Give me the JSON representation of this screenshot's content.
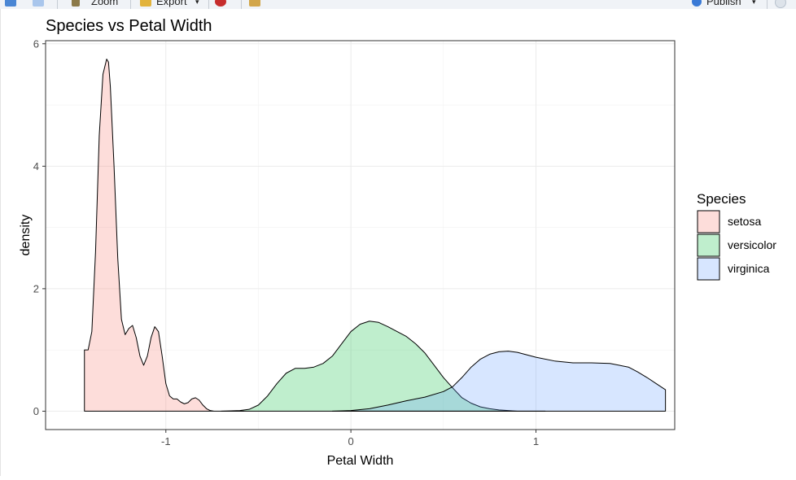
{
  "toolbar": {
    "zoom_label": "Zoom",
    "export_label": "Export",
    "publish_label": "Publish",
    "icons": [
      "back-icon",
      "forward-icon",
      "zoom-icon",
      "export-icon",
      "clear-icon",
      "broom-icon",
      "publish-icon",
      "refresh-icon"
    ]
  },
  "chart_data": {
    "type": "area",
    "title": "Species vs Petal Width",
    "xlabel": "Petal Width",
    "ylabel": "density",
    "xlim": [
      -1.65,
      1.75
    ],
    "ylim": [
      -0.3,
      6.05
    ],
    "xticks": [
      -1,
      0,
      1
    ],
    "xtick_labels": [
      "-1",
      "0",
      "1"
    ],
    "yticks": [
      0,
      2,
      4,
      6
    ],
    "ytick_labels": [
      "0",
      "2",
      "4",
      "6"
    ],
    "grid": true,
    "legend": {
      "title": "Species",
      "position": "right"
    },
    "series": [
      {
        "name": "setosa",
        "color": "#F8766D",
        "x": [
          -1.44,
          -1.42,
          -1.4,
          -1.38,
          -1.36,
          -1.34,
          -1.32,
          -1.31,
          -1.3,
          -1.28,
          -1.26,
          -1.24,
          -1.22,
          -1.2,
          -1.18,
          -1.16,
          -1.14,
          -1.12,
          -1.1,
          -1.08,
          -1.06,
          -1.04,
          -1.02,
          -1.0,
          -0.98,
          -0.96,
          -0.94,
          -0.92,
          -0.9,
          -0.88,
          -0.86,
          -0.84,
          -0.82,
          -0.8,
          -0.78,
          -0.76,
          -0.74,
          -0.72,
          -0.7,
          -0.68,
          -0.66,
          -0.62,
          -0.58
        ],
        "y": [
          1.0,
          1.0,
          1.3,
          2.6,
          4.5,
          5.5,
          5.75,
          5.7,
          5.3,
          4.0,
          2.5,
          1.5,
          1.25,
          1.35,
          1.4,
          1.2,
          0.9,
          0.75,
          0.9,
          1.2,
          1.38,
          1.3,
          0.9,
          0.45,
          0.25,
          0.2,
          0.2,
          0.15,
          0.12,
          0.14,
          0.2,
          0.22,
          0.18,
          0.1,
          0.04,
          0.01,
          0.0,
          0.0,
          0.0,
          0.0,
          0.0,
          0.0,
          0.0
        ]
      },
      {
        "name": "versicolor",
        "color": "#00BA38",
        "x": [
          -0.7,
          -0.6,
          -0.55,
          -0.5,
          -0.45,
          -0.4,
          -0.35,
          -0.3,
          -0.25,
          -0.2,
          -0.15,
          -0.1,
          -0.05,
          0.0,
          0.05,
          0.1,
          0.15,
          0.2,
          0.25,
          0.3,
          0.35,
          0.4,
          0.45,
          0.5,
          0.55,
          0.6,
          0.65,
          0.7,
          0.75,
          0.8,
          0.85,
          0.9,
          0.95,
          1.0,
          1.05
        ],
        "y": [
          0.0,
          0.01,
          0.03,
          0.1,
          0.25,
          0.45,
          0.62,
          0.7,
          0.7,
          0.72,
          0.78,
          0.9,
          1.1,
          1.3,
          1.42,
          1.47,
          1.45,
          1.38,
          1.3,
          1.22,
          1.1,
          0.95,
          0.75,
          0.55,
          0.38,
          0.22,
          0.13,
          0.07,
          0.04,
          0.02,
          0.01,
          0.0,
          0.0,
          0.0,
          0.0
        ]
      },
      {
        "name": "virginica",
        "color": "#619CFF",
        "x": [
          -0.1,
          0.0,
          0.1,
          0.2,
          0.3,
          0.4,
          0.5,
          0.55,
          0.6,
          0.65,
          0.7,
          0.75,
          0.8,
          0.85,
          0.9,
          0.95,
          1.0,
          1.1,
          1.2,
          1.3,
          1.4,
          1.5,
          1.55,
          1.6,
          1.65,
          1.7
        ],
        "y": [
          0.0,
          0.01,
          0.04,
          0.1,
          0.17,
          0.23,
          0.32,
          0.4,
          0.55,
          0.72,
          0.85,
          0.93,
          0.97,
          0.98,
          0.96,
          0.92,
          0.88,
          0.82,
          0.79,
          0.79,
          0.78,
          0.72,
          0.64,
          0.55,
          0.45,
          0.35
        ]
      }
    ]
  }
}
